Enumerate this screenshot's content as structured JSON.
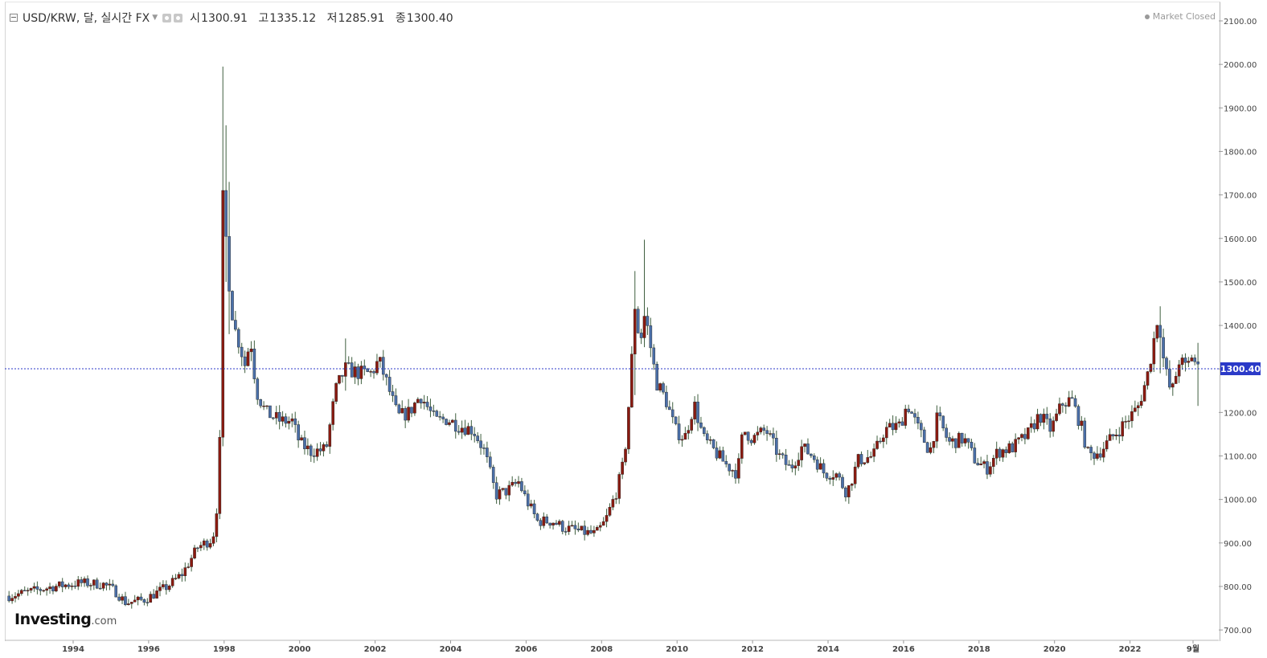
{
  "header": {
    "symbol": "USD/KRW, 달, 실시간 FX",
    "open_label": "시",
    "open": "1300.91",
    "high_label": "고",
    "high": "1335.12",
    "low_label": "저",
    "low": "1285.91",
    "close_label": "종",
    "close": "1300.40"
  },
  "market_status": "Market Closed",
  "logo": {
    "brand": "Investing",
    "suffix": ".com"
  },
  "colors": {
    "up": "#8b1a10",
    "down": "#4a6fa8",
    "price_line": "#2b3ac8",
    "wick": "#3f5f3f"
  },
  "chart_data": {
    "type": "candlestick",
    "title": "USD/KRW, 달, 실시간 FX",
    "interval": "monthly",
    "x_range": [
      1992.3,
      2024.0
    ],
    "ylim": [
      680,
      2130
    ],
    "y_ticks": [
      "2100.00",
      "2000.00",
      "1900.00",
      "1800.00",
      "1700.00",
      "1600.00",
      "1500.00",
      "1400.00",
      "1300.00",
      "1200.00",
      "1100.00",
      "1000.00",
      "900.00",
      "800.00",
      "700.00"
    ],
    "x_ticks": [
      {
        "x": 1994,
        "label": "1994"
      },
      {
        "x": 1996,
        "label": "1996"
      },
      {
        "x": 1998,
        "label": "1998"
      },
      {
        "x": 2000,
        "label": "2000"
      },
      {
        "x": 2002,
        "label": "2002"
      },
      {
        "x": 2004,
        "label": "2004"
      },
      {
        "x": 2006,
        "label": "2006"
      },
      {
        "x": 2008,
        "label": "2008"
      },
      {
        "x": 2010,
        "label": "2010"
      },
      {
        "x": 2012,
        "label": "2012"
      },
      {
        "x": 2014,
        "label": "2014"
      },
      {
        "x": 2016,
        "label": "2016"
      },
      {
        "x": 2018,
        "label": "2018"
      },
      {
        "x": 2020,
        "label": "2020"
      },
      {
        "x": 2022,
        "label": "2022"
      },
      {
        "x": 2023.67,
        "label": "9월"
      }
    ],
    "last_price": 1300.4,
    "last_price_label": "1300.40",
    "close_keypoints": [
      [
        1992.3,
        778
      ],
      [
        1993.5,
        800
      ],
      [
        1994.2,
        808
      ],
      [
        1994.8,
        805
      ],
      [
        1995.1,
        790
      ],
      [
        1995.4,
        762
      ],
      [
        1995.9,
        770
      ],
      [
        1996.5,
        800
      ],
      [
        1996.9,
        830
      ],
      [
        1997.3,
        890
      ],
      [
        1997.7,
        910
      ],
      [
        1997.83,
        1000
      ],
      [
        1997.9,
        1170
      ],
      [
        1997.96,
        1695
      ],
      [
        1998.05,
        1600
      ],
      [
        1998.12,
        1510
      ],
      [
        1998.25,
        1400
      ],
      [
        1998.4,
        1360
      ],
      [
        1998.55,
        1310
      ],
      [
        1998.7,
        1370
      ],
      [
        1998.85,
        1250
      ],
      [
        1999.1,
        1200
      ],
      [
        1999.5,
        1180
      ],
      [
        1999.8,
        1180
      ],
      [
        2000.0,
        1130
      ],
      [
        2000.3,
        1110
      ],
      [
        2000.7,
        1115
      ],
      [
        2000.95,
        1250
      ],
      [
        2001.2,
        1300
      ],
      [
        2001.6,
        1290
      ],
      [
        2001.9,
        1290
      ],
      [
        2002.1,
        1320
      ],
      [
        2002.3,
        1270
      ],
      [
        2002.6,
        1190
      ],
      [
        2002.9,
        1200
      ],
      [
        2003.2,
        1240
      ],
      [
        2003.6,
        1180
      ],
      [
        2003.9,
        1185
      ],
      [
        2004.2,
        1170
      ],
      [
        2004.6,
        1160
      ],
      [
        2004.9,
        1110
      ],
      [
        2005.2,
        1010
      ],
      [
        2005.5,
        1020
      ],
      [
        2005.8,
        1040
      ],
      [
        2006.0,
        1000
      ],
      [
        2006.3,
        950
      ],
      [
        2006.7,
        950
      ],
      [
        2007.0,
        935
      ],
      [
        2007.5,
        925
      ],
      [
        2007.85,
        920
      ],
      [
        2008.1,
        950
      ],
      [
        2008.4,
        1020
      ],
      [
        2008.6,
        1090
      ],
      [
        2008.75,
        1250
      ],
      [
        2008.9,
        1470
      ],
      [
        2009.0,
        1350
      ],
      [
        2009.15,
        1430
      ],
      [
        2009.3,
        1350
      ],
      [
        2009.45,
        1270
      ],
      [
        2009.7,
        1230
      ],
      [
        2009.95,
        1160
      ],
      [
        2010.2,
        1140
      ],
      [
        2010.45,
        1220
      ],
      [
        2010.7,
        1140
      ],
      [
        2011.0,
        1110
      ],
      [
        2011.3,
        1080
      ],
      [
        2011.6,
        1060
      ],
      [
        2011.75,
        1160
      ],
      [
        2012.0,
        1140
      ],
      [
        2012.35,
        1160
      ],
      [
        2012.7,
        1100
      ],
      [
        2013.0,
        1070
      ],
      [
        2013.3,
        1120
      ],
      [
        2013.6,
        1100
      ],
      [
        2013.9,
        1060
      ],
      [
        2014.2,
        1060
      ],
      [
        2014.5,
        1015
      ],
      [
        2014.8,
        1090
      ],
      [
        2015.2,
        1100
      ],
      [
        2015.5,
        1160
      ],
      [
        2015.9,
        1170
      ],
      [
        2016.1,
        1220
      ],
      [
        2016.4,
        1160
      ],
      [
        2016.7,
        1110
      ],
      [
        2016.9,
        1190
      ],
      [
        2017.2,
        1130
      ],
      [
        2017.6,
        1140
      ],
      [
        2017.9,
        1090
      ],
      [
        2018.2,
        1070
      ],
      [
        2018.5,
        1110
      ],
      [
        2018.9,
        1120
      ],
      [
        2019.3,
        1150
      ],
      [
        2019.6,
        1195
      ],
      [
        2019.9,
        1160
      ],
      [
        2020.2,
        1220
      ],
      [
        2020.45,
        1230
      ],
      [
        2020.7,
        1170
      ],
      [
        2020.9,
        1100
      ],
      [
        2021.2,
        1110
      ],
      [
        2021.5,
        1140
      ],
      [
        2021.9,
        1180
      ],
      [
        2022.2,
        1210
      ],
      [
        2022.45,
        1280
      ],
      [
        2022.6,
        1350
      ],
      [
        2022.75,
        1430
      ],
      [
        2022.9,
        1310
      ],
      [
        2023.1,
        1240
      ],
      [
        2023.3,
        1320
      ],
      [
        2023.5,
        1300
      ],
      [
        2023.67,
        1340
      ],
      [
        2023.75,
        1300
      ]
    ],
    "spikes": [
      {
        "x": 1997.95,
        "high": 1995,
        "low": 1130
      },
      {
        "x": 1998.04,
        "high": 1860,
        "low": 1500
      },
      {
        "x": 1998.12,
        "high": 1730,
        "low": 1380
      },
      {
        "x": 2001.25,
        "high": 1370,
        "low": 1250
      },
      {
        "x": 2008.85,
        "high": 1525,
        "low": 1240
      },
      {
        "x": 2009.16,
        "high": 1597,
        "low": 1350
      },
      {
        "x": 2022.78,
        "high": 1444,
        "low": 1290
      },
      {
        "x": 2023.83,
        "high": 1360,
        "low": 1215
      }
    ]
  }
}
